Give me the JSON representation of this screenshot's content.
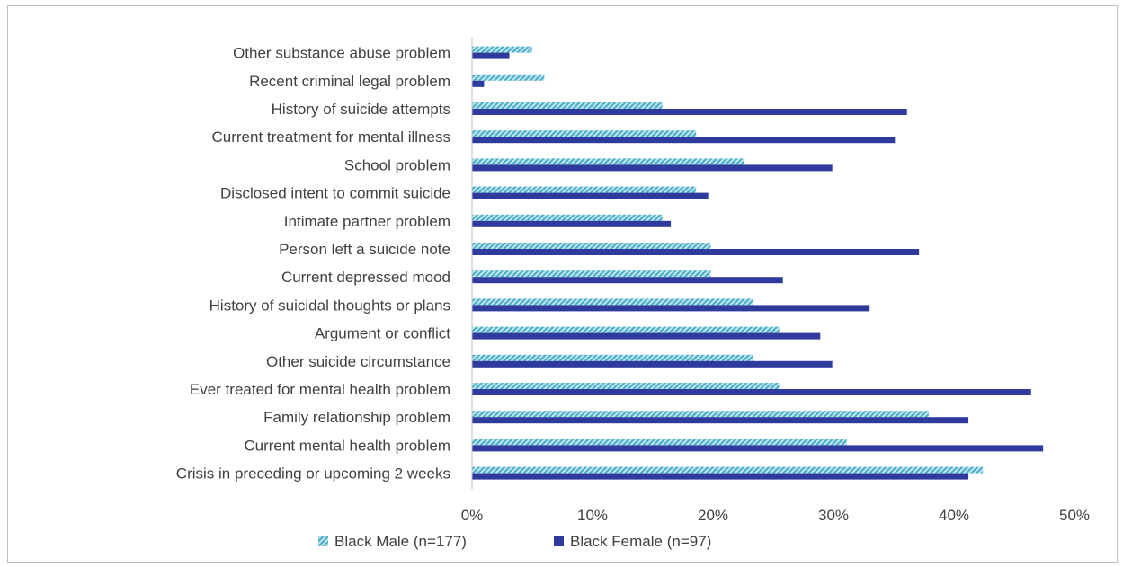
{
  "chart_data": {
    "type": "bar",
    "orientation": "horizontal",
    "categories": [
      "Other substance abuse problem",
      "Recent criminal legal problem",
      "History of suicide attempts",
      "Current treatment for mental illness",
      "School problem",
      "Disclosed intent to commit suicide",
      "Intimate partner problem",
      "Person left a suicide note",
      "Current depressed mood",
      "History of suicidal thoughts or plans",
      "Argument or conflict",
      "Other suicide circumstance",
      "Ever treated for mental health problem",
      "Family relationship problem",
      "Current mental health problem",
      "Crisis in preceding or upcoming 2 weeks"
    ],
    "series": [
      {
        "name": "Black Male (n=177)",
        "color": "#4bacc6",
        "pattern": "diagonal-hatch",
        "values": [
          5,
          6,
          15.8,
          18.6,
          22.6,
          18.6,
          15.8,
          19.8,
          19.8,
          23.3,
          25.5,
          23.3,
          25.5,
          37.9,
          31.1,
          42.4
        ]
      },
      {
        "name": "Black Female (n=97)",
        "color": "#2e3a9c",
        "pattern": "solid",
        "values": [
          3.1,
          1,
          36.1,
          35.1,
          29.9,
          19.6,
          16.5,
          37.1,
          25.8,
          33,
          28.9,
          29.9,
          46.4,
          41.2,
          47.4,
          41.2
        ]
      }
    ],
    "x_ticks": [
      "0%",
      "10%",
      "20%",
      "30%",
      "40%",
      "50%"
    ],
    "xlim": [
      0,
      50
    ],
    "grid": false,
    "legend_position": "bottom"
  }
}
